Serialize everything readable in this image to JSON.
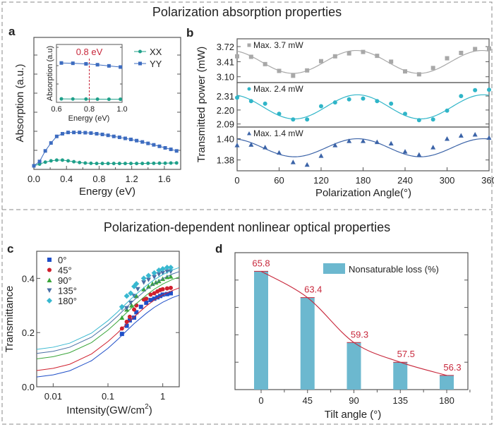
{
  "titles": {
    "top": "Polarization absorption properties",
    "bottom": "Polarization-dependent nonlinear optical properties"
  },
  "chart_data": [
    {
      "panel": "a",
      "type": "line",
      "xlabel": "Energy (eV)",
      "ylabel": "Absorption (a.u.)",
      "xlim": [
        0,
        1.8
      ],
      "ylim": [
        0,
        1
      ],
      "xticks": [
        "0.0",
        "0.4",
        "0.8",
        "1.2",
        "1.6"
      ],
      "legend": "top-right",
      "x": [
        0,
        0.07,
        0.14,
        0.21,
        0.28,
        0.35,
        0.42,
        0.49,
        0.56,
        0.63,
        0.7,
        0.77,
        0.84,
        0.91,
        0.98,
        1.05,
        1.12,
        1.19,
        1.26,
        1.33,
        1.4,
        1.47,
        1.54,
        1.61,
        1.68,
        1.75
      ],
      "series": [
        {
          "name": "XX",
          "color": "#1fa08a",
          "marker": "circle",
          "values": [
            0.027,
            0.04,
            0.055,
            0.065,
            0.07,
            0.07,
            0.065,
            0.058,
            0.052,
            0.048,
            0.046,
            0.045,
            0.045,
            0.045,
            0.045,
            0.045,
            0.045,
            0.045,
            0.045,
            0.045,
            0.046,
            0.046,
            0.047,
            0.047,
            0.048,
            0.049
          ]
        },
        {
          "name": "YY",
          "color": "#3d6cc0",
          "marker": "square",
          "values": [
            0.027,
            0.06,
            0.14,
            0.2,
            0.25,
            0.27,
            0.28,
            0.28,
            0.28,
            0.278,
            0.275,
            0.27,
            0.265,
            0.258,
            0.25,
            0.243,
            0.235,
            0.227,
            0.218,
            0.208,
            0.197,
            0.186,
            0.175,
            0.163,
            0.152,
            0.14
          ]
        }
      ],
      "inset": {
        "xlabel": "Energy (eV)",
        "ylabel": "Absorption (a.u)",
        "xlim": [
          0.6,
          1.0
        ],
        "ylim": [
          0,
          1
        ],
        "xticks": [
          "0.6",
          "0.8",
          "1.0"
        ],
        "x": [
          0.63,
          0.7,
          0.78,
          0.85,
          0.92,
          0.99
        ],
        "series": [
          {
            "name": "XX",
            "color": "#1fa08a",
            "marker": "circle",
            "values": [
              0.06,
              0.058,
              0.056,
              0.055,
              0.054,
              0.054
            ]
          },
          {
            "name": "YY",
            "color": "#3d6cc0",
            "marker": "square",
            "values": [
              0.68,
              0.675,
              0.665,
              0.65,
              0.63,
              0.61
            ]
          }
        ],
        "annotation": {
          "text": "0.8 eV",
          "x": 0.8,
          "color": "#c8283c"
        }
      }
    },
    {
      "panel": "b",
      "type": "scatter",
      "xlabel": "Polarization Angle(°)",
      "ylabel": "Transmitted power (mW)",
      "xlim": [
        0,
        360
      ],
      "xticks": [
        "0",
        "60",
        "120",
        "180",
        "240",
        "300",
        "360"
      ],
      "x": [
        0,
        20,
        40,
        60,
        80,
        100,
        120,
        140,
        160,
        180,
        200,
        220,
        240,
        260,
        280,
        300,
        320,
        340,
        360
      ],
      "subplots": [
        {
          "name": "Max. 3.7 mW",
          "color": "#a8a8a8",
          "marker": "square",
          "ylim": [
            2.98,
            3.88
          ],
          "yticks": [
            "3.72",
            "3.41",
            "3.10"
          ],
          "values": [
            3.52,
            3.51,
            3.36,
            3.22,
            3.12,
            3.23,
            3.42,
            3.52,
            3.58,
            3.61,
            3.53,
            3.41,
            3.21,
            3.15,
            3.28,
            3.48,
            3.59,
            3.67,
            3.68
          ],
          "fit": {
            "offset": 3.405,
            "amplitude": 0.235,
            "peak_deg": 170,
            "period_deg": 180
          }
        },
        {
          "name": "Max. 2.4 mW",
          "color": "#2fb5c8",
          "marker": "circle",
          "ylim": [
            2.066,
            2.416
          ],
          "yticks": [
            "2.31",
            "2.20",
            "2.09"
          ],
          "values": [
            2.297,
            2.27,
            2.25,
            2.17,
            2.126,
            2.126,
            2.23,
            2.26,
            2.284,
            2.29,
            2.27,
            2.25,
            2.17,
            2.12,
            2.126,
            2.195,
            2.31,
            2.356,
            2.36
          ],
          "fit": {
            "offset": 2.225,
            "amplitude": 0.095,
            "peak_deg": 172,
            "period_deg": 180
          }
        },
        {
          "name": "Max. 1.4 mW",
          "color": "#3c64a8",
          "marker": "triangle",
          "ylim": [
            1.3698,
            1.411
          ],
          "yticks": [
            "1.40",
            "1.38"
          ],
          "values": [
            1.394,
            1.3945,
            1.392,
            1.387,
            1.378,
            1.3756,
            1.384,
            1.394,
            1.398,
            1.398,
            1.397,
            1.3956,
            1.388,
            1.385,
            1.392,
            1.4,
            1.403,
            1.404,
            1.401
          ],
          "fit": {
            "offset": 1.3915,
            "amplitude": 0.0085,
            "peak_deg": 172,
            "period_deg": 180
          }
        }
      ]
    },
    {
      "panel": "c",
      "type": "scatter",
      "xlabel": "Intensity(GW/cm",
      "xlabel_sup": "2",
      "xlabel_end": ")",
      "ylabel": "Transmittance",
      "xscale": "log",
      "xlim": [
        0.005,
        2
      ],
      "ylim": [
        0,
        0.5
      ],
      "xticks": [
        {
          "v": 0.01,
          "label": "0.01"
        },
        {
          "v": 0.1,
          "label": "0.1"
        },
        {
          "v": 1,
          "label": "1"
        }
      ],
      "yticks": [
        {
          "v": 0,
          "label": "0.0"
        },
        {
          "v": 0.2,
          "label": "0.2"
        },
        {
          "v": 0.4,
          "label": "0.4"
        }
      ],
      "legend": "top-left",
      "fit_x": [
        0.005,
        0.01,
        0.02,
        0.05,
        0.1,
        0.15,
        0.2,
        0.3,
        0.5,
        0.7,
        1,
        1.5,
        2
      ],
      "series": [
        {
          "name": "0°",
          "color": "#1f4fc8",
          "marker": "square",
          "points": [
            [
              0.18,
              0.195
            ],
            [
              0.22,
              0.225
            ],
            [
              0.25,
              0.245
            ],
            [
              0.3,
              0.255
            ],
            [
              0.33,
              0.275
            ],
            [
              0.4,
              0.295
            ],
            [
              0.5,
              0.31
            ],
            [
              0.6,
              0.32
            ],
            [
              0.7,
              0.325
            ],
            [
              0.8,
              0.33
            ],
            [
              0.9,
              0.335
            ],
            [
              1.0,
              0.34
            ],
            [
              1.2,
              0.342
            ],
            [
              1.4,
              0.345
            ]
          ],
          "fit_y": [
            0.036,
            0.044,
            0.059,
            0.096,
            0.142,
            0.174,
            0.199,
            0.233,
            0.271,
            0.293,
            0.312,
            0.329,
            0.338
          ]
        },
        {
          "name": "45°",
          "color": "#d0202e",
          "marker": "circle",
          "points": [
            [
              0.18,
              0.215
            ],
            [
              0.22,
              0.24
            ],
            [
              0.25,
              0.258
            ],
            [
              0.3,
              0.285
            ],
            [
              0.33,
              0.3
            ],
            [
              0.45,
              0.322
            ],
            [
              0.5,
              0.325
            ],
            [
              0.6,
              0.34
            ],
            [
              0.7,
              0.345
            ],
            [
              0.8,
              0.352
            ],
            [
              0.9,
              0.357
            ],
            [
              1.0,
              0.36
            ],
            [
              1.2,
              0.363
            ],
            [
              1.4,
              0.365
            ]
          ],
          "fit_y": [
            0.06,
            0.068,
            0.083,
            0.121,
            0.167,
            0.199,
            0.224,
            0.258,
            0.298,
            0.32,
            0.339,
            0.355,
            0.365
          ]
        },
        {
          "name": "90°",
          "color": "#3aa53a",
          "marker": "triangle",
          "points": [
            [
              0.18,
              0.255
            ],
            [
              0.22,
              0.285
            ],
            [
              0.27,
              0.3
            ],
            [
              0.33,
              0.335
            ],
            [
              0.45,
              0.36
            ],
            [
              0.55,
              0.37
            ],
            [
              0.65,
              0.38
            ],
            [
              0.75,
              0.385
            ],
            [
              0.85,
              0.39
            ],
            [
              1.0,
              0.398
            ],
            [
              1.2,
              0.405
            ],
            [
              1.4,
              0.407
            ]
          ],
          "fit_y": [
            0.103,
            0.111,
            0.126,
            0.163,
            0.209,
            0.241,
            0.266,
            0.3,
            0.338,
            0.36,
            0.379,
            0.396,
            0.405
          ]
        },
        {
          "name": "135°",
          "color": "#4a6fa5",
          "marker": "triangle-down",
          "points": [
            [
              0.18,
              0.29
            ],
            [
              0.22,
              0.29
            ],
            [
              0.26,
              0.31
            ],
            [
              0.3,
              0.335
            ],
            [
              0.35,
              0.36
            ],
            [
              0.45,
              0.385
            ],
            [
              0.55,
              0.395
            ],
            [
              0.7,
              0.405
            ],
            [
              0.85,
              0.415
            ],
            [
              1.0,
              0.42
            ],
            [
              1.2,
              0.425
            ],
            [
              1.4,
              0.425
            ]
          ],
          "fit_y": [
            0.123,
            0.131,
            0.146,
            0.183,
            0.229,
            0.261,
            0.286,
            0.32,
            0.358,
            0.38,
            0.399,
            0.416,
            0.425
          ]
        },
        {
          "name": "180°",
          "color": "#38b8d0",
          "marker": "diamond",
          "points": [
            [
              0.18,
              0.295
            ],
            [
              0.22,
              0.335
            ],
            [
              0.26,
              0.345
            ],
            [
              0.3,
              0.37
            ],
            [
              0.33,
              0.38
            ],
            [
              0.45,
              0.4
            ],
            [
              0.55,
              0.41
            ],
            [
              0.7,
              0.42
            ],
            [
              0.85,
              0.43
            ],
            [
              1.0,
              0.435
            ],
            [
              1.2,
              0.44
            ],
            [
              1.4,
              0.44
            ]
          ],
          "fit_y": [
            0.138,
            0.146,
            0.161,
            0.198,
            0.244,
            0.276,
            0.301,
            0.335,
            0.373,
            0.395,
            0.414,
            0.431,
            0.44
          ]
        }
      ]
    },
    {
      "panel": "d",
      "type": "bar",
      "xlabel": "Tilt angle (°)",
      "ylabel": "",
      "categories": [
        "0",
        "45",
        "90",
        "135",
        "180"
      ],
      "ylim": [
        55,
        67.5
      ],
      "series": [
        {
          "name": "Nonsaturable loss (%)",
          "color": "#6cb8cf",
          "values": [
            65.8,
            63.4,
            59.3,
            57.5,
            56.3
          ]
        }
      ],
      "data_labels": [
        "65.8",
        "63.4",
        "59.3",
        "57.5",
        "56.3"
      ],
      "line_color": "#c8283c",
      "legend": "top-right"
    }
  ]
}
